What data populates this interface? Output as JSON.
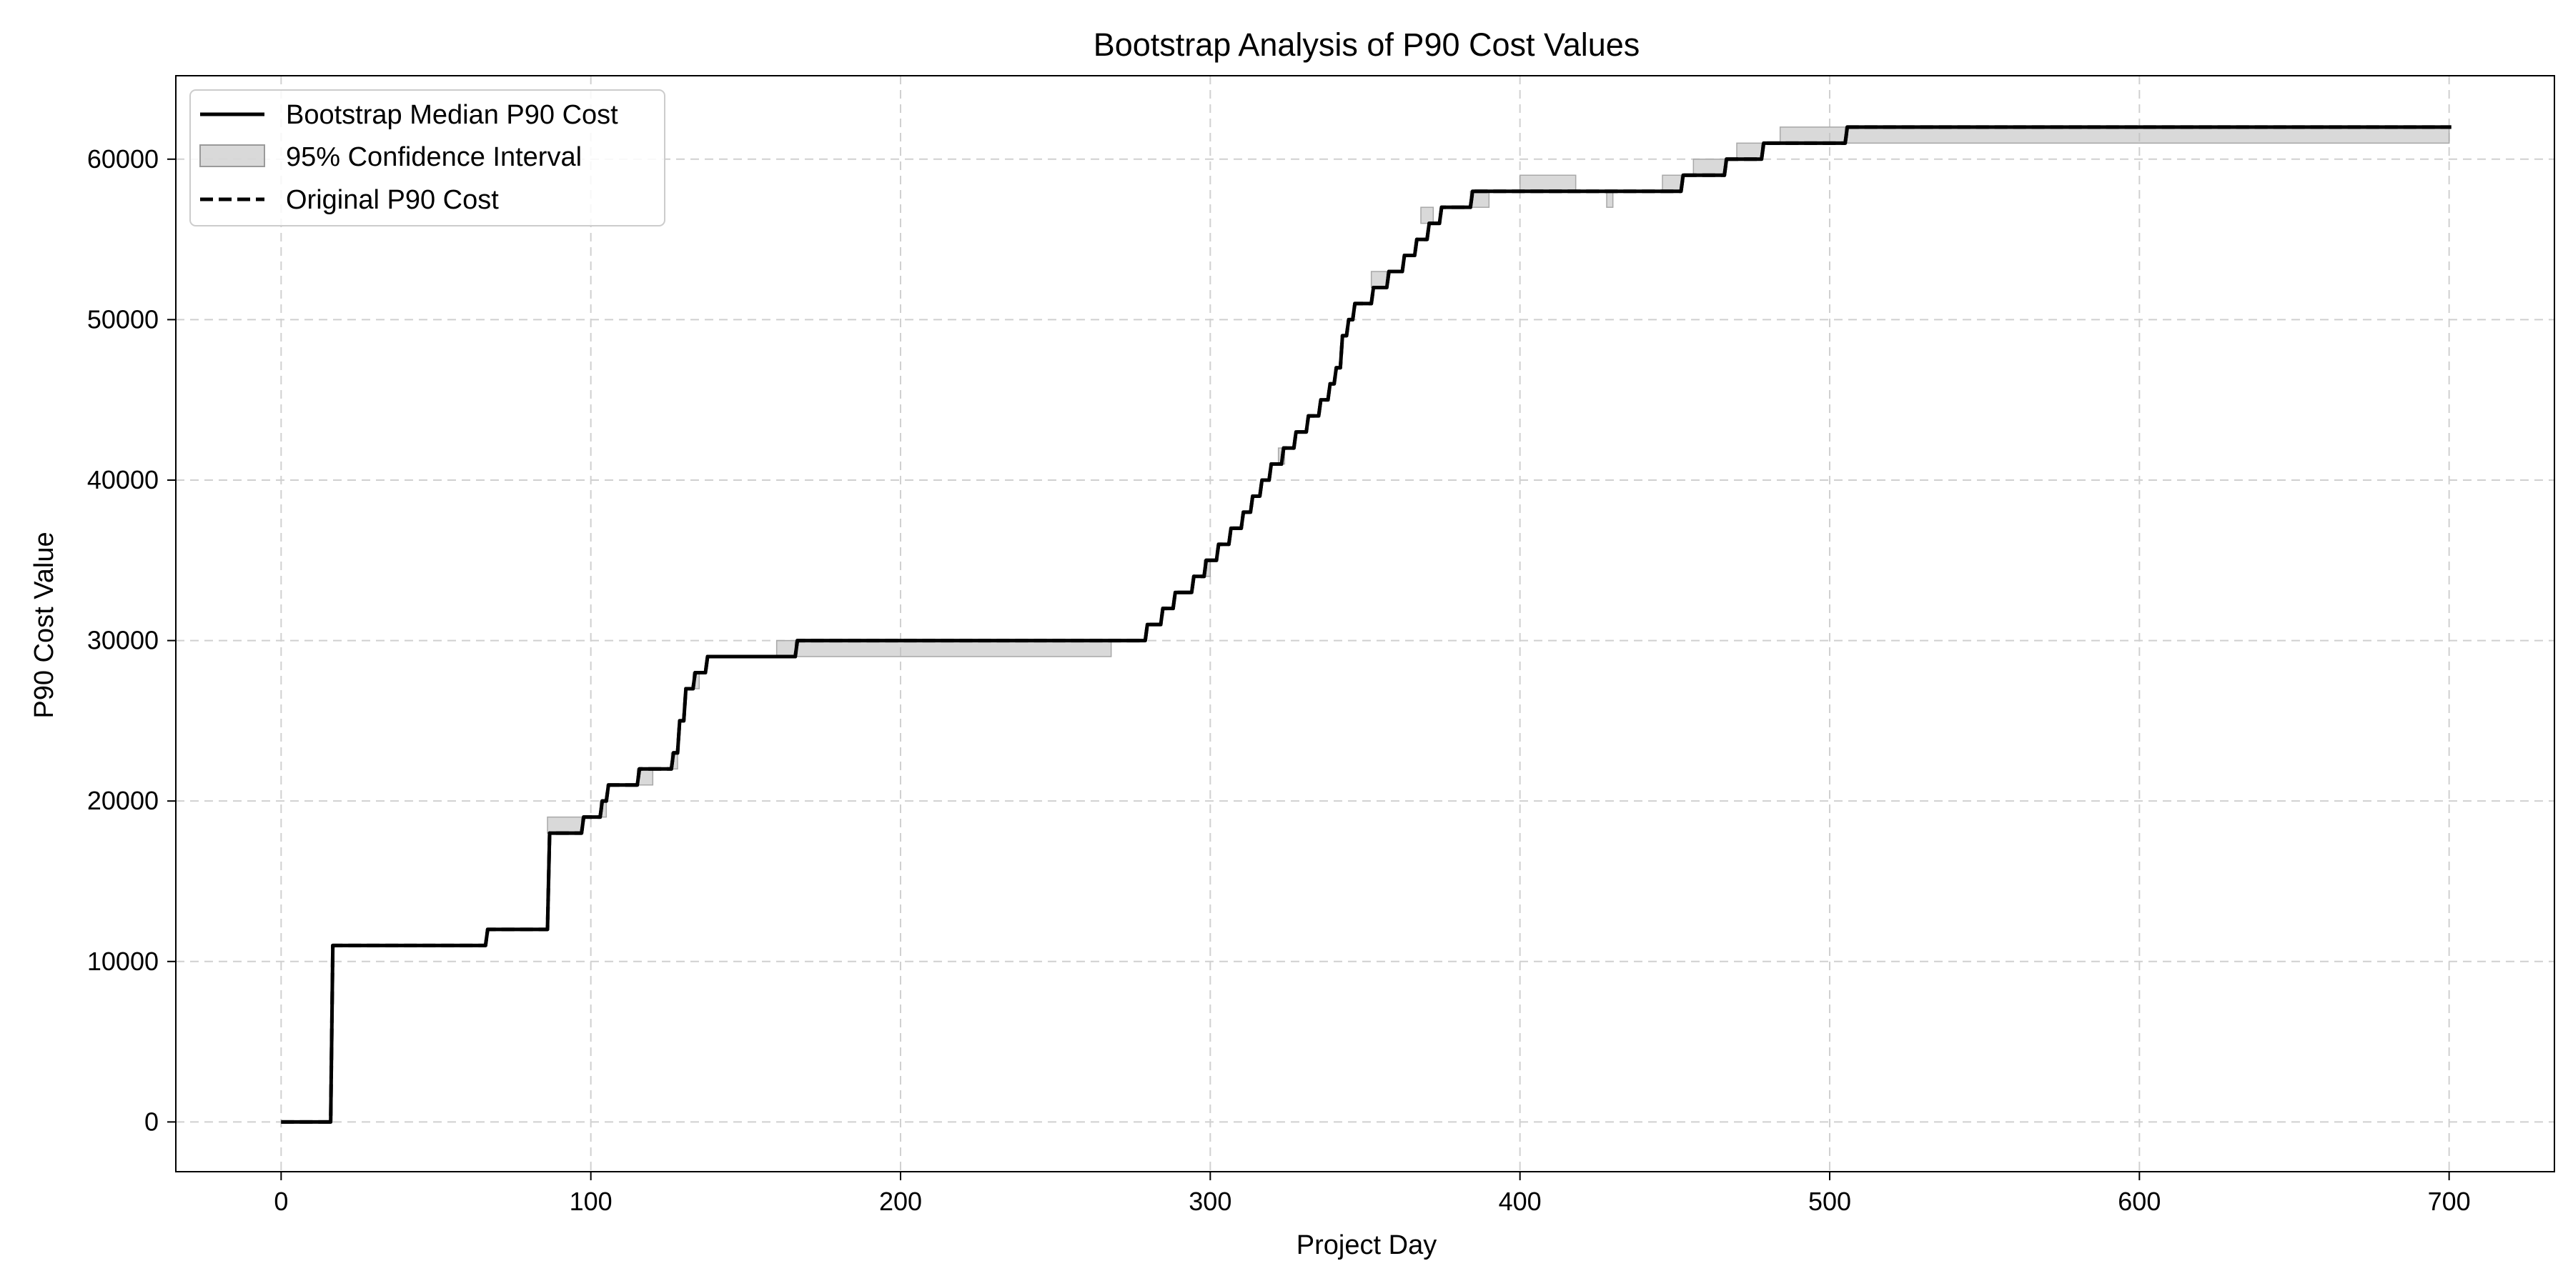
{
  "chart_data": {
    "type": "line",
    "title": "Bootstrap Analysis of P90 Cost Values",
    "xlabel": "Project Day",
    "ylabel": "P90 Cost Value",
    "xlim": [
      -34,
      734
    ],
    "ylim": [
      -3100,
      65200
    ],
    "xticks": [
      0,
      100,
      200,
      300,
      400,
      500,
      600,
      700
    ],
    "yticks": [
      0,
      10000,
      20000,
      30000,
      40000,
      50000,
      60000
    ],
    "grid": true,
    "legend_position": "top-left",
    "legend": [
      "Bootstrap Median P90 Cost",
      "95% Confidence Interval",
      "Original P90 Cost"
    ],
    "colors": {
      "median": "#000000",
      "original": "#000000",
      "ci_fill": "#bfbfbf",
      "grid": "#d0d0d0"
    },
    "series": [
      {
        "name": "Bootstrap Median P90 Cost",
        "style": "solid",
        "steps": [
          [
            0,
            0
          ],
          [
            16,
            11000
          ],
          [
            66,
            12000
          ],
          [
            86,
            18000
          ],
          [
            97,
            19000
          ],
          [
            103,
            20000
          ],
          [
            105,
            21000
          ],
          [
            115,
            22000
          ],
          [
            126,
            23000
          ],
          [
            128,
            25000
          ],
          [
            130,
            27000
          ],
          [
            133,
            28000
          ],
          [
            137,
            29000
          ],
          [
            166,
            30000
          ],
          [
            279,
            31000
          ],
          [
            284,
            32000
          ],
          [
            288,
            33000
          ],
          [
            294,
            34000
          ],
          [
            298,
            35000
          ],
          [
            302,
            36000
          ],
          [
            306,
            37000
          ],
          [
            310,
            38000
          ],
          [
            313,
            39000
          ],
          [
            316,
            40000
          ],
          [
            319,
            41000
          ],
          [
            323,
            42000
          ],
          [
            327,
            43000
          ],
          [
            331,
            44000
          ],
          [
            335,
            45000
          ],
          [
            338,
            46000
          ],
          [
            340,
            47000
          ],
          [
            342,
            49000
          ],
          [
            344,
            50000
          ],
          [
            346,
            51000
          ],
          [
            352,
            52000
          ],
          [
            357,
            53000
          ],
          [
            362,
            54000
          ],
          [
            366,
            55000
          ],
          [
            370,
            56000
          ],
          [
            374,
            57000
          ],
          [
            384,
            58000
          ],
          [
            452,
            59000
          ],
          [
            466,
            60000
          ],
          [
            478,
            61000
          ],
          [
            505,
            62000
          ],
          [
            700,
            62000
          ]
        ]
      },
      {
        "name": "Original P90 Cost",
        "style": "dashed",
        "steps": [
          [
            0,
            0
          ],
          [
            16,
            11000
          ],
          [
            66,
            12000
          ],
          [
            86,
            18000
          ],
          [
            97,
            19000
          ],
          [
            103,
            20000
          ],
          [
            105,
            21000
          ],
          [
            115,
            22000
          ],
          [
            126,
            23000
          ],
          [
            128,
            25000
          ],
          [
            130,
            27000
          ],
          [
            133,
            28000
          ],
          [
            137,
            29000
          ],
          [
            166,
            30000
          ],
          [
            279,
            31000
          ],
          [
            284,
            32000
          ],
          [
            288,
            33000
          ],
          [
            294,
            34000
          ],
          [
            298,
            35000
          ],
          [
            302,
            36000
          ],
          [
            306,
            37000
          ],
          [
            310,
            38000
          ],
          [
            313,
            39000
          ],
          [
            316,
            40000
          ],
          [
            319,
            41000
          ],
          [
            323,
            42000
          ],
          [
            327,
            43000
          ],
          [
            331,
            44000
          ],
          [
            335,
            45000
          ],
          [
            338,
            46000
          ],
          [
            340,
            47000
          ],
          [
            342,
            49000
          ],
          [
            344,
            50000
          ],
          [
            346,
            51000
          ],
          [
            352,
            52000
          ],
          [
            357,
            53000
          ],
          [
            362,
            54000
          ],
          [
            366,
            55000
          ],
          [
            370,
            56000
          ],
          [
            374,
            57000
          ],
          [
            384,
            58000
          ],
          [
            452,
            59000
          ],
          [
            466,
            60000
          ],
          [
            478,
            61000
          ],
          [
            505,
            62000
          ],
          [
            700,
            62000
          ]
        ]
      }
    ],
    "confidence_interval": {
      "name": "95% Confidence Interval",
      "bands": [
        [
          86,
          97,
          18000,
          19000
        ],
        [
          103,
          105,
          19000,
          20000
        ],
        [
          115,
          120,
          21000,
          22000
        ],
        [
          126,
          128,
          22000,
          23000
        ],
        [
          133,
          135,
          27000,
          28000
        ],
        [
          160,
          166,
          29000,
          30000
        ],
        [
          166,
          268,
          29000,
          30000
        ],
        [
          298,
          300,
          34000,
          35000
        ],
        [
          322,
          324,
          41000,
          42000
        ],
        [
          352,
          357,
          52000,
          53000
        ],
        [
          368,
          372,
          56000,
          57000
        ],
        [
          384,
          390,
          57000,
          58000
        ],
        [
          400,
          418,
          58000,
          59000
        ],
        [
          428,
          430,
          57000,
          58000
        ],
        [
          446,
          452,
          58000,
          59000
        ],
        [
          456,
          466,
          59000,
          60000
        ],
        [
          470,
          478,
          60000,
          61000
        ],
        [
          484,
          505,
          61000,
          62000
        ],
        [
          505,
          700,
          61000,
          62000
        ]
      ]
    }
  }
}
